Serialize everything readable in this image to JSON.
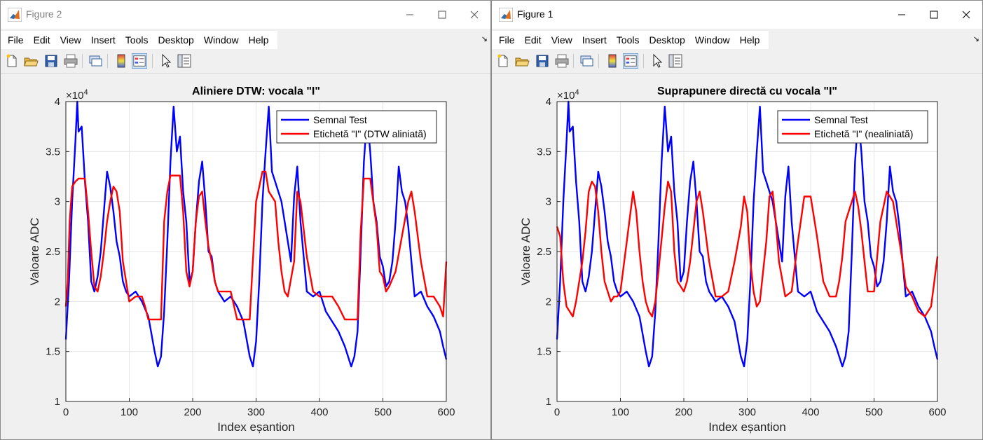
{
  "windows": [
    {
      "title": "Figure 2",
      "active": false,
      "menu": [
        "File",
        "Edit",
        "View",
        "Insert",
        "Tools",
        "Desktop",
        "Window",
        "Help"
      ],
      "plot": {
        "title": "Aliniere DTW: vocala \"I\"",
        "legend": [
          "Semnal Test",
          "Etichetă \"I\" (DTW aliniată)"
        ]
      }
    },
    {
      "title": "Figure 1",
      "active": true,
      "menu": [
        "File",
        "Edit",
        "View",
        "Insert",
        "Tools",
        "Desktop",
        "Window",
        "Help"
      ],
      "plot": {
        "title": "Suprapunere directă cu vocala \"I\"",
        "legend": [
          "Semnal Test",
          "Etichetă \"I\" (nealiniată)"
        ]
      }
    }
  ],
  "chart_data": [
    {
      "type": "line",
      "title": "Aliniere DTW: vocala \"I\"",
      "xlabel": "Index eșantion",
      "ylabel": "Valoare ADC",
      "xlim": [
        0,
        600
      ],
      "ylim": [
        10000,
        40000
      ],
      "y_multiplier_label": "×10^4",
      "xticks": [
        0,
        100,
        200,
        300,
        400,
        500,
        600
      ],
      "yticks": [
        1,
        1.5,
        2,
        2.5,
        3,
        3.5,
        4
      ],
      "grid": true,
      "legend_position": "top-right",
      "series": [
        {
          "name": "Semnal Test",
          "color": "#0000ff",
          "x": [
            0,
            5,
            10,
            15,
            18,
            20,
            25,
            30,
            35,
            40,
            45,
            50,
            55,
            60,
            65,
            70,
            75,
            80,
            85,
            90,
            95,
            100,
            110,
            120,
            130,
            140,
            145,
            150,
            155,
            160,
            165,
            170,
            175,
            180,
            185,
            190,
            195,
            200,
            205,
            210,
            215,
            220,
            225,
            230,
            235,
            240,
            250,
            260,
            270,
            280,
            290,
            295,
            300,
            305,
            310,
            315,
            320,
            325,
            330,
            340,
            350,
            355,
            360,
            365,
            370,
            380,
            390,
            400,
            410,
            420,
            430,
            440,
            450,
            455,
            460,
            465,
            470,
            475,
            480,
            485,
            490,
            495,
            500,
            505,
            510,
            515,
            520,
            525,
            530,
            535,
            540,
            545,
            550,
            560,
            570,
            580,
            590,
            595,
            600
          ],
          "y": [
            16200,
            22000,
            30000,
            36000,
            40000,
            37000,
            37500,
            32000,
            28000,
            22000,
            21000,
            22500,
            25000,
            29000,
            33000,
            31500,
            29000,
            26000,
            24500,
            22000,
            21000,
            20500,
            21000,
            20000,
            18500,
            15000,
            13500,
            14500,
            19000,
            26000,
            34000,
            39500,
            35000,
            36500,
            31000,
            28000,
            22000,
            23000,
            28000,
            32000,
            34000,
            30000,
            25000,
            24500,
            22000,
            21000,
            20000,
            20500,
            19500,
            18000,
            14500,
            13500,
            16000,
            22000,
            30000,
            35000,
            39500,
            33000,
            32000,
            30000,
            26000,
            24000,
            30500,
            33500,
            28000,
            21000,
            20500,
            21000,
            19000,
            18000,
            17000,
            15500,
            13500,
            14500,
            17000,
            25000,
            34000,
            38500,
            35000,
            30000,
            28000,
            24500,
            23500,
            21500,
            22000,
            24000,
            28000,
            33500,
            31000,
            30000,
            27500,
            24000,
            20500,
            21000,
            19500,
            18500,
            17000,
            15500,
            14200
          ]
        },
        {
          "name": "Etichetă \"I\" (DTW aliniată)",
          "color": "#ff0000",
          "x": [
            0,
            3,
            6,
            10,
            15,
            20,
            30,
            35,
            40,
            45,
            50,
            55,
            60,
            65,
            70,
            75,
            80,
            85,
            90,
            95,
            100,
            110,
            120,
            125,
            130,
            140,
            150,
            155,
            160,
            165,
            170,
            180,
            185,
            190,
            195,
            200,
            205,
            210,
            215,
            220,
            225,
            230,
            235,
            240,
            250,
            260,
            270,
            280,
            290,
            300,
            310,
            315,
            320,
            330,
            335,
            340,
            345,
            350,
            360,
            365,
            370,
            380,
            390,
            400,
            410,
            420,
            430,
            440,
            450,
            460,
            465,
            470,
            475,
            480,
            490,
            495,
            500,
            505,
            510,
            520,
            530,
            540,
            545,
            550,
            560,
            570,
            580,
            590,
            595,
            600
          ],
          "y": [
            19500,
            22000,
            28000,
            31500,
            32000,
            32300,
            32300,
            29000,
            25000,
            21500,
            21000,
            22500,
            25000,
            28000,
            30000,
            31500,
            31000,
            29000,
            24000,
            22000,
            20000,
            20500,
            20500,
            19500,
            18200,
            18200,
            18200,
            28000,
            31000,
            32600,
            32600,
            32600,
            29000,
            23000,
            21500,
            23000,
            28000,
            30500,
            31000,
            28000,
            25500,
            24000,
            22000,
            21000,
            21000,
            21000,
            18200,
            18200,
            18200,
            30000,
            33000,
            33000,
            31000,
            30000,
            26000,
            23000,
            21000,
            20500,
            24000,
            31000,
            30000,
            24500,
            21000,
            20500,
            20500,
            20500,
            19500,
            18200,
            18200,
            18200,
            27000,
            32300,
            32300,
            32300,
            27500,
            23000,
            22500,
            21000,
            21500,
            23000,
            26500,
            30000,
            31000,
            29000,
            24000,
            20500,
            20500,
            19500,
            18500,
            24000
          ]
        }
      ]
    },
    {
      "type": "line",
      "title": "Suprapunere directă cu vocala \"I\"",
      "xlabel": "Index eșantion",
      "ylabel": "Valoare ADC",
      "xlim": [
        0,
        600
      ],
      "ylim": [
        10000,
        40000
      ],
      "y_multiplier_label": "×10^4",
      "xticks": [
        0,
        100,
        200,
        300,
        400,
        500,
        600
      ],
      "yticks": [
        1,
        1.5,
        2,
        2.5,
        3,
        3.5,
        4
      ],
      "grid": true,
      "legend_position": "top-right",
      "series": [
        {
          "name": "Semnal Test",
          "color": "#0000ff",
          "x": [
            0,
            5,
            10,
            15,
            18,
            20,
            25,
            30,
            35,
            40,
            45,
            50,
            55,
            60,
            65,
            70,
            75,
            80,
            85,
            90,
            95,
            100,
            110,
            120,
            130,
            140,
            145,
            150,
            155,
            160,
            165,
            170,
            175,
            180,
            185,
            190,
            195,
            200,
            205,
            210,
            215,
            220,
            225,
            230,
            235,
            240,
            250,
            260,
            270,
            280,
            290,
            295,
            300,
            305,
            310,
            315,
            320,
            325,
            330,
            340,
            350,
            355,
            360,
            365,
            370,
            380,
            390,
            400,
            410,
            420,
            430,
            440,
            450,
            455,
            460,
            465,
            470,
            475,
            480,
            485,
            490,
            495,
            500,
            505,
            510,
            515,
            520,
            525,
            530,
            535,
            540,
            545,
            550,
            560,
            570,
            580,
            590,
            595,
            600
          ],
          "y": [
            16200,
            22000,
            30000,
            36000,
            40000,
            37000,
            37500,
            32000,
            28000,
            22000,
            21000,
            22500,
            25000,
            29000,
            33000,
            31500,
            29000,
            26000,
            24500,
            22000,
            21000,
            20500,
            21000,
            20000,
            18500,
            15000,
            13500,
            14500,
            19000,
            26000,
            34000,
            39500,
            35000,
            36500,
            31000,
            28000,
            22000,
            23000,
            28000,
            32000,
            34000,
            30000,
            25000,
            24500,
            22000,
            21000,
            20000,
            20500,
            19500,
            18000,
            14500,
            13500,
            16000,
            22000,
            30000,
            35000,
            39500,
            33000,
            32000,
            30000,
            26000,
            24000,
            30500,
            33500,
            28000,
            21000,
            20500,
            21000,
            19000,
            18000,
            17000,
            15500,
            13500,
            14500,
            17000,
            25000,
            34000,
            38500,
            35000,
            30000,
            28000,
            24500,
            23500,
            21500,
            22000,
            24000,
            28000,
            33500,
            31000,
            30000,
            27500,
            24000,
            20500,
            21000,
            19500,
            18500,
            17000,
            15500,
            14200
          ]
        },
        {
          "name": "Etichetă \"I\" (nealiniată)",
          "color": "#ff0000",
          "x": [
            0,
            5,
            10,
            15,
            20,
            25,
            30,
            35,
            40,
            45,
            50,
            55,
            60,
            65,
            70,
            75,
            80,
            85,
            90,
            95,
            100,
            110,
            120,
            125,
            130,
            135,
            140,
            145,
            150,
            155,
            160,
            170,
            175,
            180,
            185,
            190,
            195,
            200,
            205,
            210,
            215,
            220,
            225,
            230,
            240,
            250,
            260,
            270,
            280,
            290,
            295,
            300,
            305,
            310,
            315,
            320,
            330,
            335,
            340,
            345,
            350,
            360,
            370,
            380,
            390,
            400,
            410,
            420,
            430,
            440,
            445,
            450,
            455,
            460,
            470,
            475,
            480,
            485,
            490,
            500,
            510,
            520,
            530,
            540,
            545,
            550,
            560,
            570,
            580,
            590,
            595,
            600
          ],
          "y": [
            27500,
            26500,
            22000,
            19500,
            19000,
            18500,
            20000,
            22000,
            24000,
            27000,
            31000,
            32000,
            31500,
            29000,
            25000,
            22000,
            21000,
            20000,
            20500,
            20500,
            21000,
            26000,
            31000,
            29000,
            25000,
            22000,
            20000,
            19000,
            18500,
            20000,
            23000,
            29500,
            32000,
            31000,
            25000,
            22000,
            21500,
            21000,
            22000,
            24000,
            27000,
            30000,
            31000,
            29000,
            24000,
            20500,
            20500,
            21000,
            24000,
            27500,
            30500,
            29000,
            24000,
            21000,
            19500,
            20000,
            26000,
            30500,
            31000,
            28000,
            24000,
            20500,
            21000,
            26000,
            30500,
            30500,
            26500,
            22000,
            20500,
            20500,
            22000,
            24500,
            28000,
            29000,
            31000,
            29500,
            27000,
            24000,
            21000,
            21000,
            28000,
            31000,
            30000,
            26000,
            24000,
            21500,
            20500,
            19000,
            18500,
            19500,
            22000,
            24500
          ]
        }
      ]
    }
  ]
}
